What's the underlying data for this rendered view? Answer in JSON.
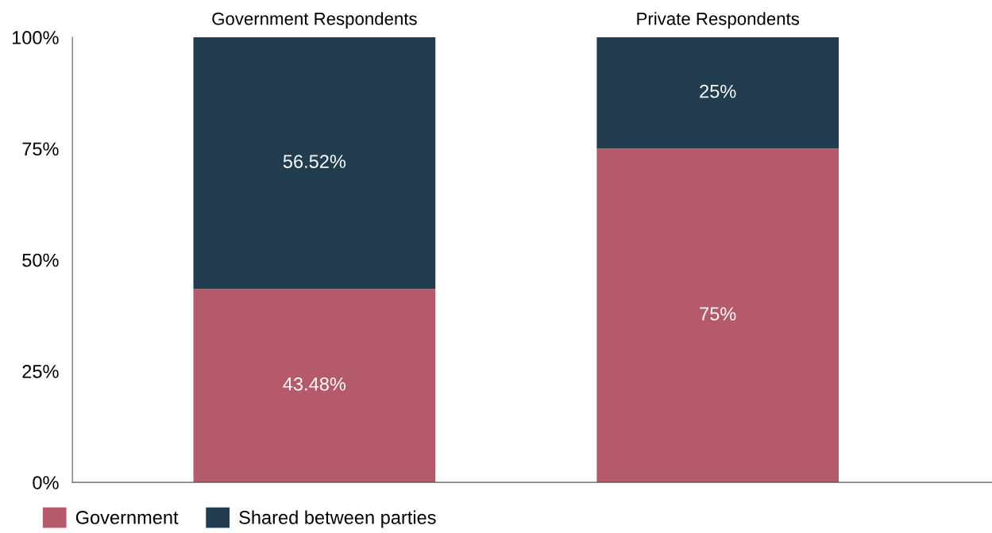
{
  "chart_data": {
    "type": "bar",
    "stacked": true,
    "categories": [
      "Government Respondents",
      "Private Respondents"
    ],
    "series": [
      {
        "name": "Government",
        "color": "#b55a6a",
        "values": [
          43.48,
          75
        ],
        "value_labels": [
          "43.48%",
          "75%"
        ]
      },
      {
        "name": "Shared between parties",
        "color": "#213d4f",
        "values": [
          56.52,
          25
        ],
        "value_labels": [
          "56.52%",
          "25%"
        ]
      }
    ],
    "ylim": [
      0,
      100
    ],
    "yticks": [
      {
        "value": 0,
        "label": "0%"
      },
      {
        "value": 25,
        "label": "25%"
      },
      {
        "value": 50,
        "label": "50%"
      },
      {
        "value": 75,
        "label": "75%"
      },
      {
        "value": 100,
        "label": "100%"
      }
    ],
    "grid": false,
    "legend": "bottom left"
  }
}
